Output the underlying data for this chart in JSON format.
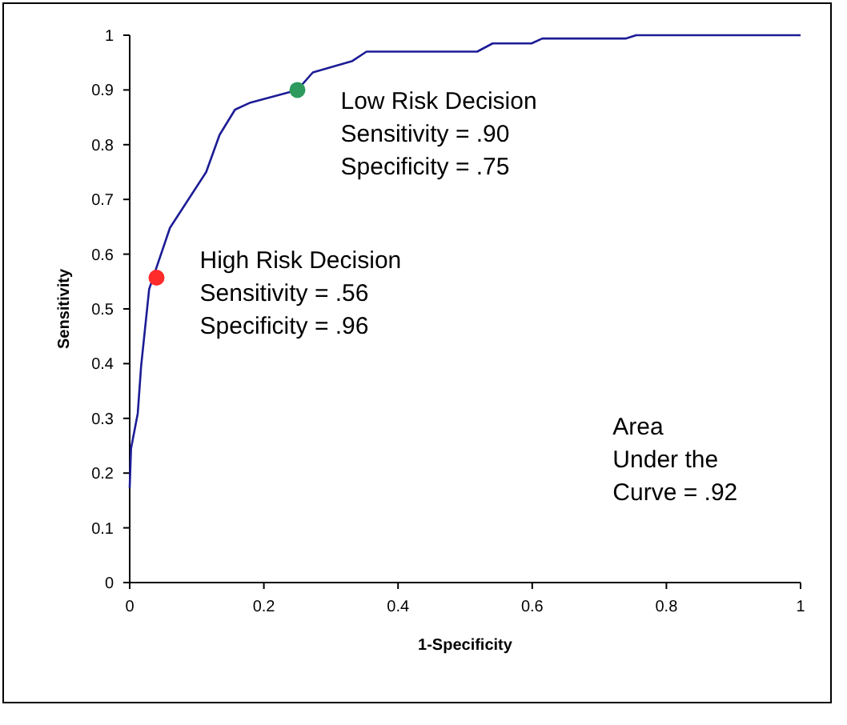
{
  "chart_data": {
    "type": "line",
    "xlabel": "1-Specificity",
    "ylabel": "Sensitivity",
    "xlim": [
      0,
      1
    ],
    "ylim": [
      0,
      1
    ],
    "xticks": [
      0,
      0.2,
      0.4,
      0.6,
      0.8,
      1
    ],
    "yticks": [
      0,
      0.1,
      0.2,
      0.3,
      0.4,
      0.5,
      0.6,
      0.7,
      0.8,
      0.9,
      1
    ],
    "grid": false,
    "series": [
      {
        "color": "#1c1c96",
        "marker": "none",
        "x": [
          0,
          0.002,
          0.012,
          0.017,
          0.029,
          0.06,
          0.114,
          0.134,
          0.157,
          0.18,
          0.25,
          0.273,
          0.332,
          0.353,
          0.518,
          0.541,
          0.599,
          0.615,
          0.74,
          0.755,
          1
        ],
        "values": [
          0.173,
          0.245,
          0.309,
          0.395,
          0.536,
          0.648,
          0.75,
          0.818,
          0.864,
          0.877,
          0.9,
          0.932,
          0.953,
          0.97,
          0.97,
          0.985,
          0.985,
          0.994,
          0.994,
          1,
          1
        ]
      },
      {
        "type": "scatter",
        "color": "#ff2a2a",
        "marker": "circle",
        "x": [
          0.04
        ],
        "values": [
          0.557
        ]
      },
      {
        "type": "scatter",
        "color": "#2e9a5e",
        "marker": "circle",
        "x": [
          0.25
        ],
        "values": [
          0.9
        ]
      }
    ],
    "annotations": [
      {
        "text": "Low Risk Decision\nSensitivity = .90\nSpecificity = .75",
        "x": 0.25,
        "y": 0.9
      },
      {
        "text": "High Risk Decision\nSensitivity = .56\nSpecificity = .96",
        "x": 0.04,
        "y": 0.557
      },
      "Area\nUnder the\nCurve = .92"
    ]
  }
}
